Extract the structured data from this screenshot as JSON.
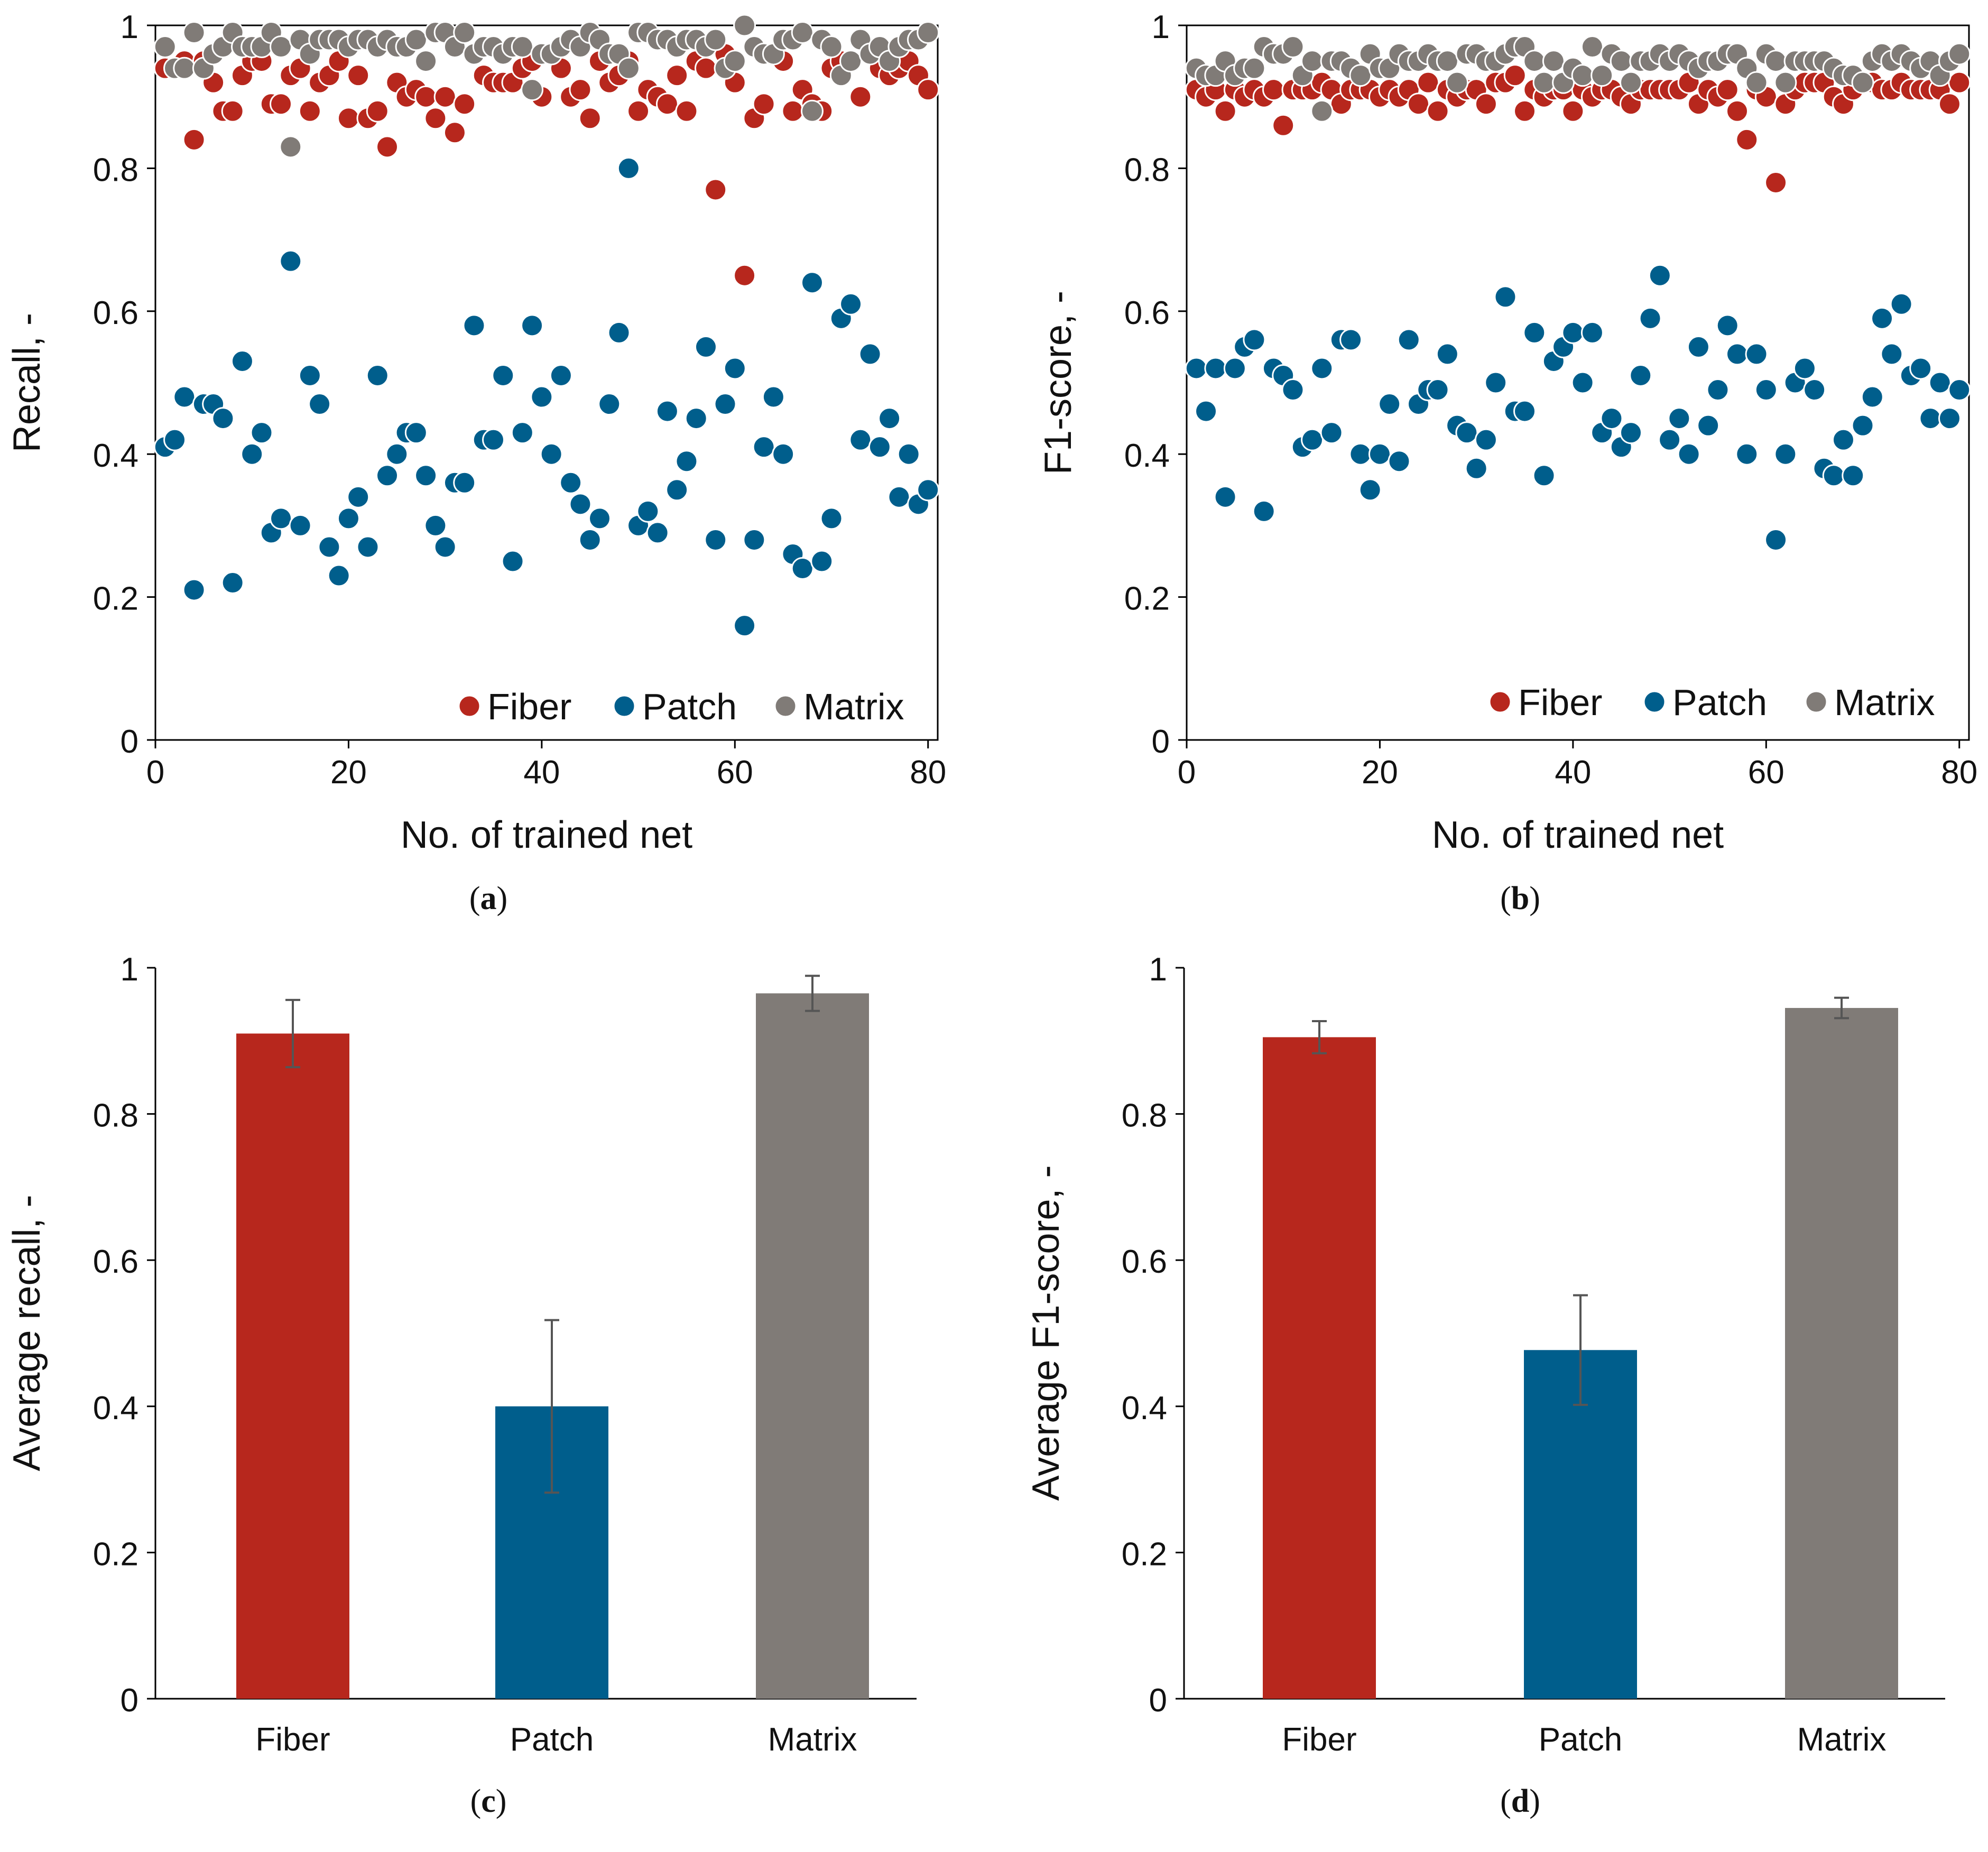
{
  "colors": {
    "fiber": "#b7271d",
    "patch": "#005e8c",
    "matrix": "#807b77",
    "errorbar": "#555555",
    "axis": "#000000"
  },
  "chart_data": [
    {
      "id": "a",
      "type": "scatter",
      "caption": {
        "open": "(",
        "letter": "a",
        "close": ")"
      },
      "xlabel": "No. of trained net",
      "ylabel": "Recall, -",
      "xlim": [
        0,
        81
      ],
      "ylim": [
        0,
        1
      ],
      "xticks": [
        "0",
        "20",
        "40",
        "60",
        "80"
      ],
      "yticks": [
        "0",
        "0.2",
        "0.4",
        "0.6",
        "0.8",
        "1"
      ],
      "legend": [
        "Fiber",
        "Patch",
        "Matrix"
      ],
      "legend_position": "bottom-right",
      "x_start": 1,
      "series": [
        {
          "name": "Fiber",
          "values": [
            0.94,
            0.94,
            0.95,
            0.84,
            0.95,
            0.92,
            0.88,
            0.88,
            0.93,
            0.95,
            0.95,
            0.89,
            0.89,
            0.93,
            0.94,
            0.88,
            0.92,
            0.93,
            0.95,
            0.87,
            0.93,
            0.87,
            0.88,
            0.83,
            0.92,
            0.9,
            0.91,
            0.9,
            0.87,
            0.9,
            0.85,
            0.89,
            0.96,
            0.93,
            0.92,
            0.92,
            0.92,
            0.94,
            0.95,
            0.9,
            0.96,
            0.94,
            0.9,
            0.91,
            0.87,
            0.95,
            0.92,
            0.93,
            0.95,
            0.88,
            0.91,
            0.9,
            0.89,
            0.93,
            0.88,
            0.95,
            0.94,
            0.77,
            0.96,
            0.92,
            0.65,
            0.87,
            0.89,
            0.96,
            0.95,
            0.88,
            0.91,
            0.89,
            0.88,
            0.94,
            0.95,
            0.95,
            0.9,
            0.96,
            0.94,
            0.93,
            0.94,
            0.95,
            0.93,
            0.91
          ]
        },
        {
          "name": "Patch",
          "values": [
            0.41,
            0.42,
            0.48,
            0.21,
            0.47,
            0.47,
            0.45,
            0.22,
            0.53,
            0.4,
            0.43,
            0.29,
            0.31,
            0.67,
            0.3,
            0.51,
            0.47,
            0.27,
            0.23,
            0.31,
            0.34,
            0.27,
            0.51,
            0.37,
            0.4,
            0.43,
            0.43,
            0.37,
            0.3,
            0.27,
            0.36,
            0.36,
            0.58,
            0.42,
            0.42,
            0.51,
            0.25,
            0.43,
            0.58,
            0.48,
            0.4,
            0.51,
            0.36,
            0.33,
            0.28,
            0.31,
            0.47,
            0.57,
            0.8,
            0.3,
            0.32,
            0.29,
            0.46,
            0.35,
            0.39,
            0.45,
            0.55,
            0.28,
            0.47,
            0.52,
            0.16,
            0.28,
            0.41,
            0.48,
            0.4,
            0.26,
            0.24,
            0.64,
            0.25,
            0.31,
            0.59,
            0.61,
            0.42,
            0.54,
            0.41,
            0.45,
            0.34,
            0.4,
            0.33,
            0.35
          ]
        },
        {
          "name": "Matrix",
          "values": [
            0.97,
            0.94,
            0.94,
            0.99,
            0.94,
            0.96,
            0.97,
            0.99,
            0.97,
            0.97,
            0.97,
            0.99,
            0.97,
            0.83,
            0.98,
            0.96,
            0.98,
            0.98,
            0.98,
            0.97,
            0.98,
            0.98,
            0.97,
            0.98,
            0.97,
            0.97,
            0.98,
            0.95,
            0.99,
            0.99,
            0.97,
            0.99,
            0.96,
            0.97,
            0.97,
            0.96,
            0.97,
            0.97,
            0.91,
            0.96,
            0.96,
            0.97,
            0.98,
            0.97,
            0.99,
            0.98,
            0.96,
            0.96,
            0.94,
            0.99,
            0.99,
            0.98,
            0.98,
            0.97,
            0.98,
            0.98,
            0.97,
            0.98,
            0.94,
            0.95,
            1.0,
            0.97,
            0.96,
            0.96,
            0.98,
            0.98,
            0.99,
            0.88,
            0.98,
            0.97,
            0.93,
            0.95,
            0.98,
            0.96,
            0.97,
            0.95,
            0.97,
            0.98,
            0.98,
            0.99
          ]
        }
      ]
    },
    {
      "id": "b",
      "type": "scatter",
      "caption": {
        "open": "(",
        "letter": "b",
        "close": ")"
      },
      "xlabel": "No. of trained net",
      "ylabel": "F1-score, -",
      "xlim": [
        0,
        81
      ],
      "ylim": [
        0,
        1
      ],
      "xticks": [
        "0",
        "20",
        "40",
        "60",
        "80"
      ],
      "yticks": [
        "0",
        "0.2",
        "0.4",
        "0.6",
        "0.8",
        "1"
      ],
      "legend": [
        "Fiber",
        "Patch",
        "Matrix"
      ],
      "legend_position": "bottom-right",
      "x_start": 1,
      "series": [
        {
          "name": "Fiber",
          "values": [
            0.91,
            0.9,
            0.91,
            0.88,
            0.91,
            0.9,
            0.91,
            0.9,
            0.91,
            0.86,
            0.91,
            0.91,
            0.91,
            0.92,
            0.91,
            0.89,
            0.91,
            0.91,
            0.91,
            0.9,
            0.91,
            0.9,
            0.91,
            0.89,
            0.92,
            0.88,
            0.91,
            0.9,
            0.91,
            0.91,
            0.89,
            0.92,
            0.92,
            0.93,
            0.88,
            0.91,
            0.9,
            0.91,
            0.91,
            0.88,
            0.91,
            0.9,
            0.91,
            0.91,
            0.9,
            0.89,
            0.91,
            0.91,
            0.91,
            0.91,
            0.91,
            0.92,
            0.89,
            0.91,
            0.9,
            0.91,
            0.88,
            0.84,
            0.91,
            0.9,
            0.78,
            0.89,
            0.91,
            0.92,
            0.92,
            0.92,
            0.9,
            0.89,
            0.91,
            0.92,
            0.92,
            0.91,
            0.91,
            0.92,
            0.91,
            0.91,
            0.91,
            0.91,
            0.89,
            0.92
          ]
        },
        {
          "name": "Patch",
          "values": [
            0.52,
            0.46,
            0.52,
            0.34,
            0.52,
            0.55,
            0.56,
            0.32,
            0.52,
            0.51,
            0.49,
            0.41,
            0.42,
            0.52,
            0.43,
            0.56,
            0.56,
            0.4,
            0.35,
            0.4,
            0.47,
            0.39,
            0.56,
            0.47,
            0.49,
            0.49,
            0.54,
            0.44,
            0.43,
            0.38,
            0.42,
            0.5,
            0.62,
            0.46,
            0.46,
            0.57,
            0.37,
            0.53,
            0.55,
            0.57,
            0.5,
            0.57,
            0.43,
            0.45,
            0.41,
            0.43,
            0.51,
            0.59,
            0.65,
            0.42,
            0.45,
            0.4,
            0.55,
            0.44,
            0.49,
            0.58,
            0.54,
            0.4,
            0.54,
            0.49,
            0.28,
            0.4,
            0.5,
            0.52,
            0.49,
            0.38,
            0.37,
            0.42,
            0.37,
            0.44,
            0.48,
            0.59,
            0.54,
            0.61,
            0.51,
            0.52,
            0.45,
            0.5,
            0.45,
            0.49
          ]
        },
        {
          "name": "Matrix",
          "values": [
            0.94,
            0.93,
            0.93,
            0.95,
            0.93,
            0.94,
            0.94,
            0.97,
            0.96,
            0.96,
            0.97,
            0.93,
            0.95,
            0.88,
            0.95,
            0.95,
            0.94,
            0.93,
            0.96,
            0.94,
            0.94,
            0.96,
            0.95,
            0.95,
            0.96,
            0.95,
            0.95,
            0.92,
            0.96,
            0.96,
            0.95,
            0.95,
            0.96,
            0.97,
            0.97,
            0.95,
            0.92,
            0.95,
            0.92,
            0.94,
            0.93,
            0.97,
            0.93,
            0.96,
            0.95,
            0.92,
            0.95,
            0.95,
            0.96,
            0.95,
            0.96,
            0.95,
            0.94,
            0.95,
            0.95,
            0.96,
            0.96,
            0.94,
            0.92,
            0.96,
            0.95,
            0.92,
            0.95,
            0.95,
            0.95,
            0.95,
            0.94,
            0.93,
            0.93,
            0.92,
            0.95,
            0.96,
            0.95,
            0.96,
            0.95,
            0.94,
            0.95,
            0.93,
            0.95,
            0.96
          ]
        }
      ]
    },
    {
      "id": "c",
      "type": "bar",
      "caption": {
        "open": "(",
        "letter": "c",
        "close": ")"
      },
      "xlabel": "",
      "ylabel": "Average recall, -",
      "ylim": [
        0,
        1
      ],
      "yticks": [
        "0",
        "0.2",
        "0.4",
        "0.6",
        "0.8",
        "1"
      ],
      "categories": [
        "Fiber",
        "Patch",
        "Matrix"
      ],
      "values": [
        0.91,
        0.4,
        0.965
      ],
      "errors": [
        0.046,
        0.118,
        0.024
      ]
    },
    {
      "id": "d",
      "type": "bar",
      "caption": {
        "open": "(",
        "letter": "d",
        "close": ")"
      },
      "xlabel": "",
      "ylabel": "Average F1-score, -",
      "ylim": [
        0,
        1
      ],
      "yticks": [
        "0",
        "0.2",
        "0.4",
        "0.6",
        "0.8",
        "1"
      ],
      "categories": [
        "Fiber",
        "Patch",
        "Matrix"
      ],
      "values": [
        0.905,
        0.477,
        0.945
      ],
      "errors": [
        0.022,
        0.075,
        0.014
      ]
    }
  ]
}
